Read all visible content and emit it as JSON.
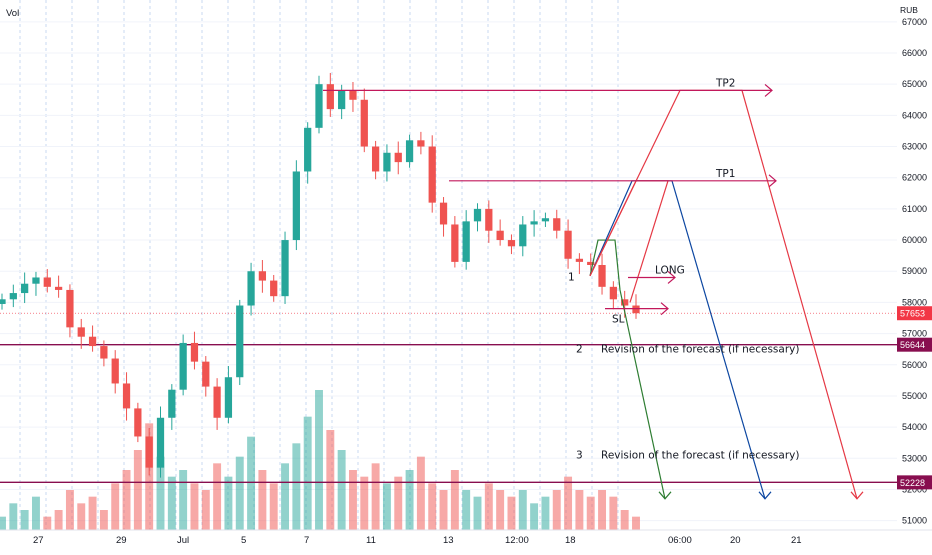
{
  "header": {
    "left_label": "Vol",
    "currency": "RUB"
  },
  "chart_data": {
    "type": "candlestick",
    "title": "",
    "ylim": [
      50700,
      67700
    ],
    "y_ticks": [
      51000,
      52000,
      53000,
      54000,
      55000,
      56000,
      57000,
      58000,
      59000,
      60000,
      61000,
      62000,
      63000,
      64000,
      65000,
      66000,
      67000
    ],
    "x_labels": [
      "27",
      "29",
      "Jul",
      "5",
      "7",
      "11",
      "13",
      "12:00",
      "18",
      "06:00",
      "20",
      "21"
    ],
    "price_badges": [
      {
        "label": "57653",
        "value": 57653,
        "color": "#f23645"
      },
      {
        "label": "56644",
        "value": 56644,
        "color": "#880e4f"
      },
      {
        "label": "52228",
        "value": 52228,
        "color": "#880e4f"
      }
    ],
    "horizontal_levels": [
      {
        "value": 56644,
        "color": "#880e4f"
      },
      {
        "value": 52228,
        "color": "#880e4f"
      }
    ],
    "close_path": [
      [
        0,
        58100
      ],
      [
        1,
        58300
      ],
      [
        2,
        58600
      ],
      [
        3,
        58800
      ],
      [
        4,
        58500
      ],
      [
        5,
        58400
      ],
      [
        6,
        57200
      ],
      [
        7,
        56900
      ],
      [
        8,
        56600
      ],
      [
        9,
        56200
      ],
      [
        10,
        55400
      ],
      [
        11,
        54600
      ],
      [
        12,
        53700
      ],
      [
        13,
        52700
      ],
      [
        14,
        54300
      ],
      [
        15,
        55200
      ],
      [
        16,
        56700
      ],
      [
        17,
        56100
      ],
      [
        18,
        55300
      ],
      [
        19,
        54300
      ],
      [
        20,
        55600
      ],
      [
        21,
        57900
      ],
      [
        22,
        59000
      ],
      [
        23,
        58700
      ],
      [
        24,
        58200
      ],
      [
        25,
        60000
      ],
      [
        26,
        62200
      ],
      [
        27,
        63600
      ],
      [
        28,
        65000
      ],
      [
        29,
        64200
      ],
      [
        30,
        64800
      ],
      [
        31,
        64500
      ],
      [
        32,
        63000
      ],
      [
        33,
        62200
      ],
      [
        34,
        62800
      ],
      [
        35,
        62500
      ],
      [
        36,
        63200
      ],
      [
        37,
        63000
      ],
      [
        38,
        61200
      ],
      [
        39,
        60500
      ],
      [
        40,
        59300
      ],
      [
        41,
        60600
      ],
      [
        42,
        61000
      ],
      [
        43,
        60300
      ],
      [
        44,
        60000
      ],
      [
        45,
        59800
      ],
      [
        46,
        60500
      ],
      [
        47,
        60600
      ],
      [
        48,
        60700
      ],
      [
        49,
        60300
      ],
      [
        50,
        59400
      ],
      [
        51,
        59300
      ],
      [
        52,
        59200
      ],
      [
        53,
        58500
      ],
      [
        54,
        58100
      ],
      [
        55,
        57900
      ],
      [
        56,
        57653
      ]
    ],
    "volume": [
      2,
      4,
      3,
      5,
      2,
      3,
      6,
      4,
      5,
      3,
      7,
      9,
      12,
      16,
      11,
      8,
      9,
      7,
      6,
      10,
      8,
      11,
      14,
      9,
      7,
      10,
      13,
      17,
      21,
      15,
      12,
      9,
      8,
      10,
      7,
      8,
      9,
      11,
      7,
      6,
      9,
      6,
      5,
      7,
      6,
      5,
      6,
      4,
      5,
      6,
      8,
      6,
      5,
      6,
      5,
      3,
      2
    ],
    "forecast_paths": [
      {
        "color": "#2e7d32",
        "points": [
          [
            0,
            58850
          ],
          [
            1,
            60000
          ],
          [
            2,
            60000
          ],
          [
            3,
            58400
          ],
          [
            4,
            51700
          ]
        ]
      },
      {
        "color": "#0d47a1",
        "points": [
          [
            0,
            58850
          ],
          [
            1,
            61900
          ],
          [
            2,
            61900
          ],
          [
            3,
            51700
          ]
        ]
      },
      {
        "color": "#e53945",
        "points": [
          [
            0,
            58850
          ],
          [
            1,
            64800
          ],
          [
            2,
            64800
          ],
          [
            3,
            51700
          ]
        ]
      },
      {
        "color": "#e53945",
        "points": [
          [
            0,
            58850
          ],
          [
            1,
            61900
          ],
          [
            2,
            61900
          ],
          [
            3,
            58000
          ]
        ]
      }
    ],
    "arrows": [
      {
        "label": "TP2",
        "value": 64800,
        "color": "#c2185b"
      },
      {
        "label": "TP1",
        "value": 61900,
        "color": "#c2185b"
      },
      {
        "label": "LONG",
        "value": 58800,
        "color": "#c2185b"
      },
      {
        "label": "SL",
        "value": 57800,
        "color": "#c2185b"
      }
    ],
    "annotations": [
      {
        "label": "1"
      },
      {
        "label": "2"
      },
      {
        "label": "3"
      },
      {
        "label": "Revision of the forecast (if necessary)"
      },
      {
        "label": "Revision of the forecast (if necessary)"
      }
    ]
  }
}
